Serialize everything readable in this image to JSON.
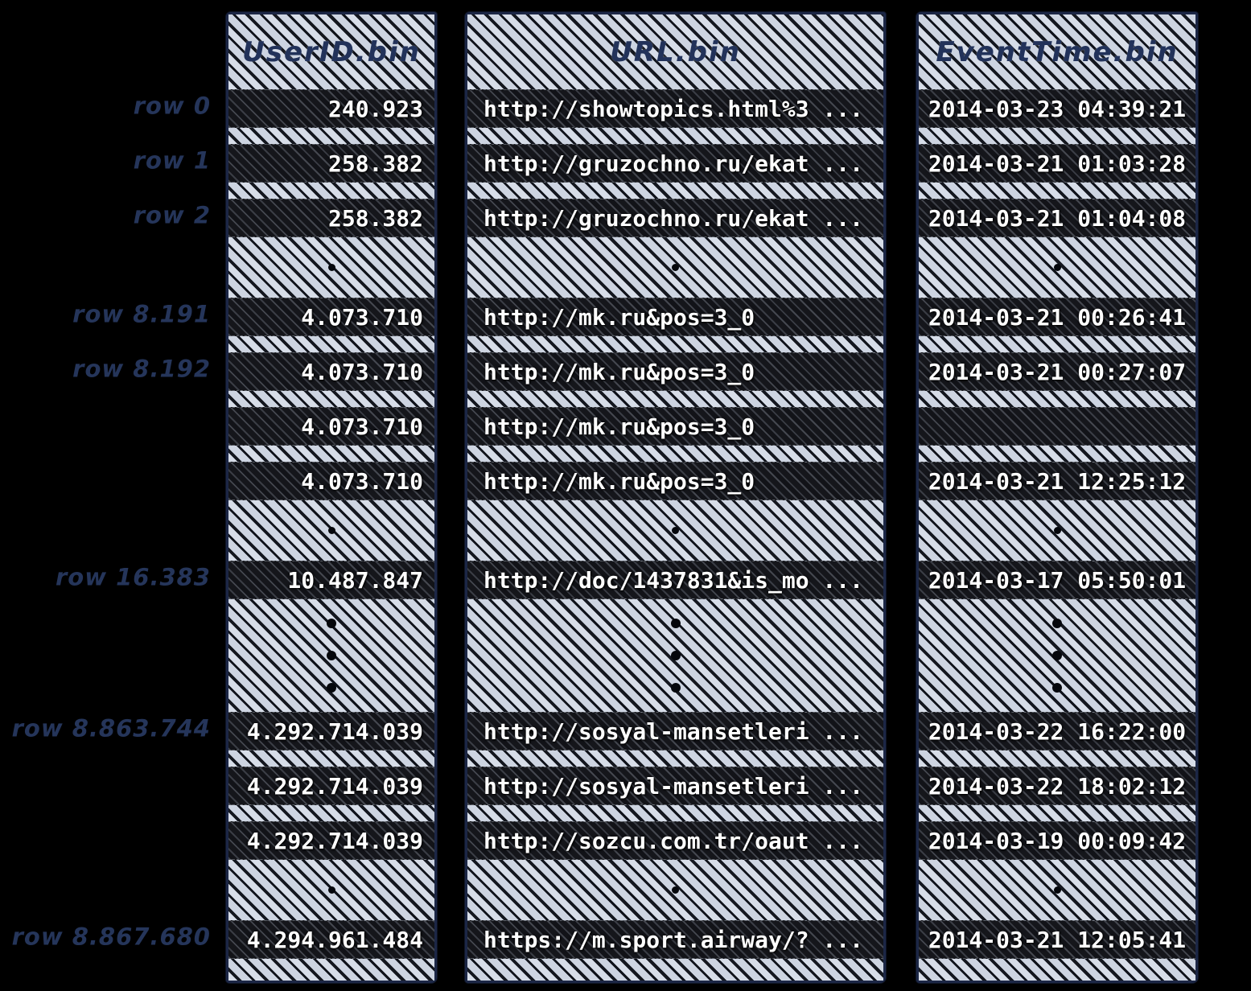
{
  "diagram": {
    "title": "column data files with row groups",
    "background_color": "#000000",
    "ink_navy": "#25355a",
    "cell_text_color": "#ffffff",
    "hatch_light_color": "#d7dde8",
    "hatch_dark_color": "#44474f"
  },
  "columns": [
    {
      "id": "userid",
      "label": "UserID.bin",
      "align": "right"
    },
    {
      "id": "url",
      "label": "URL.bin",
      "align": "left"
    },
    {
      "id": "eventtime",
      "label": "EventTime.bin",
      "align": "center"
    }
  ],
  "rows": [
    {
      "kind": "header"
    },
    {
      "kind": "data",
      "label": "row 0",
      "userid": "240.923",
      "url": "http://showtopics.html%3 ...",
      "eventtime": "2014-03-23 04:39:21"
    },
    {
      "kind": "sep"
    },
    {
      "kind": "data",
      "label": "row 1",
      "userid": "258.382",
      "url": "http://gruzochno.ru/ekat ...",
      "eventtime": "2014-03-21 01:03:28"
    },
    {
      "kind": "sep"
    },
    {
      "kind": "data",
      "label": "row 2",
      "userid": "258.382",
      "url": "http://gruzochno.ru/ekat ...",
      "eventtime": "2014-03-21 01:04:08"
    },
    {
      "kind": "gap"
    },
    {
      "kind": "data",
      "label": "row 8.191",
      "userid": "4.073.710",
      "url": "http://mk.ru&pos=3_0",
      "eventtime": "2014-03-21 00:26:41"
    },
    {
      "kind": "sep"
    },
    {
      "kind": "data",
      "label": "row 8.192",
      "userid": "4.073.710",
      "url": "http://mk.ru&pos=3_0",
      "eventtime": "2014-03-21 00:27:07"
    },
    {
      "kind": "sep"
    },
    {
      "kind": "data",
      "label": "",
      "userid": "4.073.710",
      "url": "http://mk.ru&pos=3_0",
      "eventtime": ""
    },
    {
      "kind": "sep"
    },
    {
      "kind": "data",
      "label": "",
      "userid": "4.073.710",
      "url": "http://mk.ru&pos=3_0",
      "eventtime": "2014-03-21 12:25:12"
    },
    {
      "kind": "gap"
    },
    {
      "kind": "data",
      "label": "row 16.383",
      "userid": "10.487.847",
      "url": "http://doc/1437831&is_mo ...",
      "eventtime": "2014-03-17 05:50:01"
    },
    {
      "kind": "dots"
    },
    {
      "kind": "data",
      "label": "row 8.863.744",
      "userid": "4.292.714.039",
      "url": "http://sosyal-mansetleri ...",
      "eventtime": "2014-03-22 16:22:00"
    },
    {
      "kind": "sep"
    },
    {
      "kind": "data",
      "label": "",
      "userid": "4.292.714.039",
      "url": "http://sosyal-mansetleri ...",
      "eventtime": "2014-03-22 18:02:12"
    },
    {
      "kind": "sep"
    },
    {
      "kind": "data",
      "label": "",
      "userid": "4.292.714.039",
      "url": "http://sozcu.com.tr/oaut ...",
      "eventtime": "2014-03-19 00:09:42"
    },
    {
      "kind": "gap"
    },
    {
      "kind": "data",
      "label": "row 8.867.680",
      "userid": "4.294.961.484",
      "url": "https://m.sport.airway/? ...",
      "eventtime": "2014-03-21 12:05:41"
    },
    {
      "kind": "bottom"
    }
  ]
}
